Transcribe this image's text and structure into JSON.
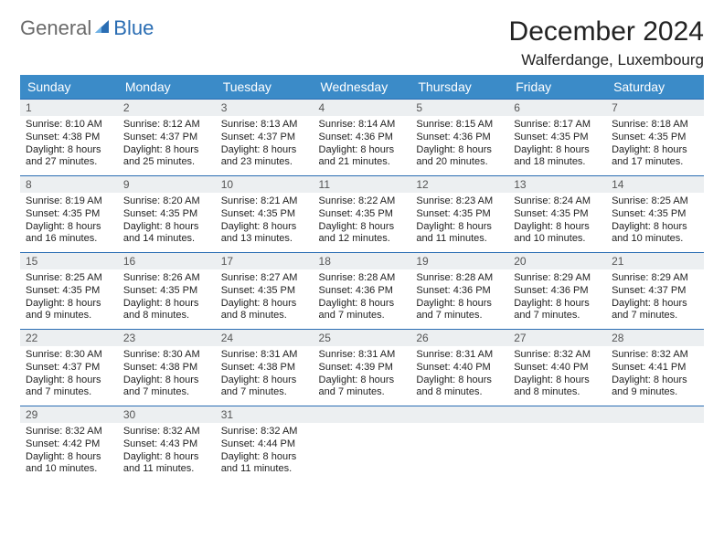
{
  "logo": {
    "general": "General",
    "blue": "Blue"
  },
  "title": "December 2024",
  "location": "Walferdange, Luxembourg",
  "colors": {
    "header_bg": "#3b8bc8",
    "header_text": "#ffffff",
    "daynum_bg": "#eceff1",
    "row_border": "#2a6db3",
    "logo_gray": "#6a6a6a",
    "logo_blue": "#2a6db3",
    "page_bg": "#ffffff"
  },
  "dayHeaders": [
    "Sunday",
    "Monday",
    "Tuesday",
    "Wednesday",
    "Thursday",
    "Friday",
    "Saturday"
  ],
  "weeks": [
    [
      {
        "n": "1",
        "sr": "8:10 AM",
        "ss": "4:38 PM",
        "dl": "8 hours and 27 minutes."
      },
      {
        "n": "2",
        "sr": "8:12 AM",
        "ss": "4:37 PM",
        "dl": "8 hours and 25 minutes."
      },
      {
        "n": "3",
        "sr": "8:13 AM",
        "ss": "4:37 PM",
        "dl": "8 hours and 23 minutes."
      },
      {
        "n": "4",
        "sr": "8:14 AM",
        "ss": "4:36 PM",
        "dl": "8 hours and 21 minutes."
      },
      {
        "n": "5",
        "sr": "8:15 AM",
        "ss": "4:36 PM",
        "dl": "8 hours and 20 minutes."
      },
      {
        "n": "6",
        "sr": "8:17 AM",
        "ss": "4:35 PM",
        "dl": "8 hours and 18 minutes."
      },
      {
        "n": "7",
        "sr": "8:18 AM",
        "ss": "4:35 PM",
        "dl": "8 hours and 17 minutes."
      }
    ],
    [
      {
        "n": "8",
        "sr": "8:19 AM",
        "ss": "4:35 PM",
        "dl": "8 hours and 16 minutes."
      },
      {
        "n": "9",
        "sr": "8:20 AM",
        "ss": "4:35 PM",
        "dl": "8 hours and 14 minutes."
      },
      {
        "n": "10",
        "sr": "8:21 AM",
        "ss": "4:35 PM",
        "dl": "8 hours and 13 minutes."
      },
      {
        "n": "11",
        "sr": "8:22 AM",
        "ss": "4:35 PM",
        "dl": "8 hours and 12 minutes."
      },
      {
        "n": "12",
        "sr": "8:23 AM",
        "ss": "4:35 PM",
        "dl": "8 hours and 11 minutes."
      },
      {
        "n": "13",
        "sr": "8:24 AM",
        "ss": "4:35 PM",
        "dl": "8 hours and 10 minutes."
      },
      {
        "n": "14",
        "sr": "8:25 AM",
        "ss": "4:35 PM",
        "dl": "8 hours and 10 minutes."
      }
    ],
    [
      {
        "n": "15",
        "sr": "8:25 AM",
        "ss": "4:35 PM",
        "dl": "8 hours and 9 minutes."
      },
      {
        "n": "16",
        "sr": "8:26 AM",
        "ss": "4:35 PM",
        "dl": "8 hours and 8 minutes."
      },
      {
        "n": "17",
        "sr": "8:27 AM",
        "ss": "4:35 PM",
        "dl": "8 hours and 8 minutes."
      },
      {
        "n": "18",
        "sr": "8:28 AM",
        "ss": "4:36 PM",
        "dl": "8 hours and 7 minutes."
      },
      {
        "n": "19",
        "sr": "8:28 AM",
        "ss": "4:36 PM",
        "dl": "8 hours and 7 minutes."
      },
      {
        "n": "20",
        "sr": "8:29 AM",
        "ss": "4:36 PM",
        "dl": "8 hours and 7 minutes."
      },
      {
        "n": "21",
        "sr": "8:29 AM",
        "ss": "4:37 PM",
        "dl": "8 hours and 7 minutes."
      }
    ],
    [
      {
        "n": "22",
        "sr": "8:30 AM",
        "ss": "4:37 PM",
        "dl": "8 hours and 7 minutes."
      },
      {
        "n": "23",
        "sr": "8:30 AM",
        "ss": "4:38 PM",
        "dl": "8 hours and 7 minutes."
      },
      {
        "n": "24",
        "sr": "8:31 AM",
        "ss": "4:38 PM",
        "dl": "8 hours and 7 minutes."
      },
      {
        "n": "25",
        "sr": "8:31 AM",
        "ss": "4:39 PM",
        "dl": "8 hours and 7 minutes."
      },
      {
        "n": "26",
        "sr": "8:31 AM",
        "ss": "4:40 PM",
        "dl": "8 hours and 8 minutes."
      },
      {
        "n": "27",
        "sr": "8:32 AM",
        "ss": "4:40 PM",
        "dl": "8 hours and 8 minutes."
      },
      {
        "n": "28",
        "sr": "8:32 AM",
        "ss": "4:41 PM",
        "dl": "8 hours and 9 minutes."
      }
    ],
    [
      {
        "n": "29",
        "sr": "8:32 AM",
        "ss": "4:42 PM",
        "dl": "8 hours and 10 minutes."
      },
      {
        "n": "30",
        "sr": "8:32 AM",
        "ss": "4:43 PM",
        "dl": "8 hours and 11 minutes."
      },
      {
        "n": "31",
        "sr": "8:32 AM",
        "ss": "4:44 PM",
        "dl": "8 hours and 11 minutes."
      },
      null,
      null,
      null,
      null
    ]
  ],
  "labels": {
    "sunrise": "Sunrise:",
    "sunset": "Sunset:",
    "daylight": "Daylight:"
  }
}
